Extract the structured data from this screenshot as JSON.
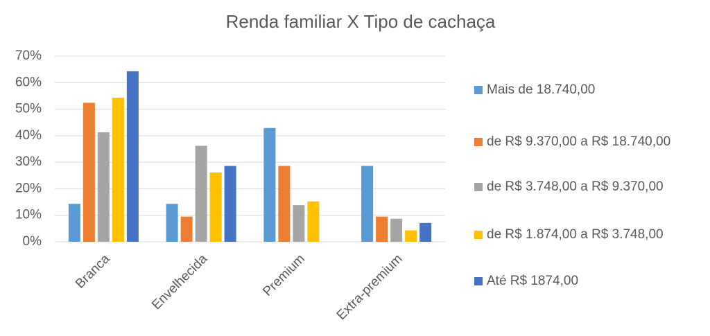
{
  "chart_data": {
    "type": "bar",
    "title": "Renda familiar X Tipo de cachaça",
    "categories": [
      "Branca",
      "Envelhecida",
      "Premium",
      "Extra-premium"
    ],
    "series": [
      {
        "name": "Mais de 18.740,00",
        "color": "#5b9bd5",
        "values": [
          14.3,
          14.3,
          42.9,
          28.6
        ]
      },
      {
        "name": "de R$ 9.370,00 a R$ 18.740,00",
        "color": "#ed7d31",
        "values": [
          52.4,
          9.5,
          28.6,
          9.5
        ]
      },
      {
        "name": "de R$ 3.748,00 a R$ 9.370,00",
        "color": "#a5a5a5",
        "values": [
          41.3,
          36.2,
          13.8,
          8.7
        ]
      },
      {
        "name": "de R$ 1.874,00 a R$ 3.748,00",
        "color": "#ffc000",
        "values": [
          54.3,
          26.1,
          15.2,
          4.3
        ]
      },
      {
        "name": "Até R$ 1874,00",
        "color": "#4472c4",
        "values": [
          64.3,
          28.6,
          0,
          7.1
        ]
      }
    ],
    "ylim": [
      0,
      70
    ],
    "yticks": [
      {
        "value": 0,
        "label": "0%"
      },
      {
        "value": 10,
        "label": "10%"
      },
      {
        "value": 20,
        "label": "20%"
      },
      {
        "value": 30,
        "label": "30%"
      },
      {
        "value": 40,
        "label": "40%"
      },
      {
        "value": 50,
        "label": "50%"
      },
      {
        "value": 60,
        "label": "60%"
      },
      {
        "value": 70,
        "label": "70%"
      }
    ],
    "grid": true,
    "legend": "right"
  }
}
